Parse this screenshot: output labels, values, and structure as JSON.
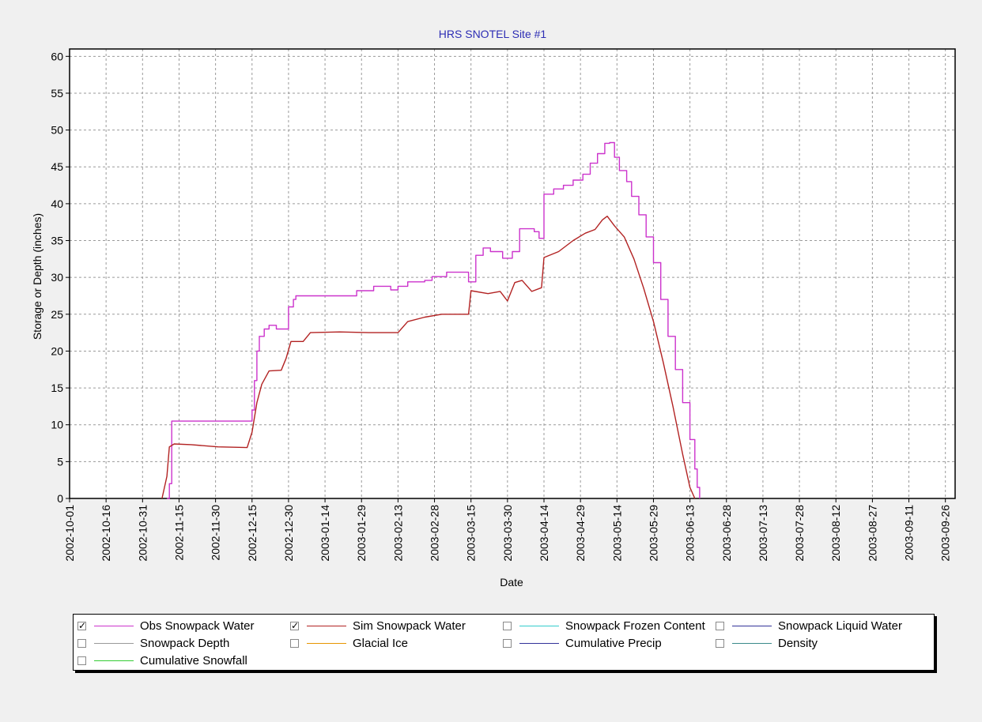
{
  "chart_data": {
    "type": "line",
    "title": "HRS SNOTEL Site #1",
    "xlabel": "Date",
    "ylabel": "Storage or Depth (inches)",
    "ylim": [
      0,
      61
    ],
    "yticks": [
      0,
      5,
      10,
      15,
      20,
      25,
      30,
      35,
      40,
      45,
      50,
      55,
      60
    ],
    "xlim": [
      "2002-10-01",
      "2003-09-30"
    ],
    "xticks": [
      "2002-10-01",
      "2002-10-16",
      "2002-10-31",
      "2002-11-15",
      "2002-11-30",
      "2002-12-15",
      "2002-12-30",
      "2003-01-14",
      "2003-01-29",
      "2003-02-13",
      "2003-02-28",
      "2003-03-15",
      "2003-03-30",
      "2003-04-14",
      "2003-04-29",
      "2003-05-14",
      "2003-05-29",
      "2003-06-13",
      "2003-06-28",
      "2003-07-13",
      "2003-07-28",
      "2003-08-12",
      "2003-08-27",
      "2003-09-11",
      "2003-09-26"
    ],
    "grid": true,
    "legend_position": "bottom",
    "series": [
      {
        "name": "Obs Snowpack Water",
        "color": "#cc33cc",
        "step": true,
        "points": [
          [
            "2002-11-10",
            0
          ],
          [
            "2002-11-11",
            2
          ],
          [
            "2002-11-12",
            10.5
          ],
          [
            "2002-12-13",
            10.5
          ],
          [
            "2002-12-15",
            12
          ],
          [
            "2002-12-16",
            16
          ],
          [
            "2002-12-17",
            20
          ],
          [
            "2002-12-18",
            22
          ],
          [
            "2002-12-20",
            23
          ],
          [
            "2002-12-22",
            23.5
          ],
          [
            "2002-12-25",
            23
          ],
          [
            "2002-12-30",
            26
          ],
          [
            "2003-01-01",
            27
          ],
          [
            "2003-01-02",
            27.5
          ],
          [
            "2003-01-25",
            27.5
          ],
          [
            "2003-01-27",
            28.2
          ],
          [
            "2003-02-03",
            28.8
          ],
          [
            "2003-02-10",
            28.3
          ],
          [
            "2003-02-13",
            28.8
          ],
          [
            "2003-02-17",
            29.4
          ],
          [
            "2003-02-24",
            29.6
          ],
          [
            "2003-02-27",
            30.1
          ],
          [
            "2003-03-05",
            30.7
          ],
          [
            "2003-03-12",
            30.7
          ],
          [
            "2003-03-14",
            29.4
          ],
          [
            "2003-03-17",
            33
          ],
          [
            "2003-03-20",
            34
          ],
          [
            "2003-03-23",
            33.5
          ],
          [
            "2003-03-28",
            32.6
          ],
          [
            "2003-04-01",
            33.5
          ],
          [
            "2003-04-04",
            36.6
          ],
          [
            "2003-04-10",
            36.2
          ],
          [
            "2003-04-12",
            35.3
          ],
          [
            "2003-04-14",
            41.3
          ],
          [
            "2003-04-18",
            42
          ],
          [
            "2003-04-22",
            42.5
          ],
          [
            "2003-04-26",
            43.2
          ],
          [
            "2003-04-30",
            44
          ],
          [
            "2003-05-03",
            45.5
          ],
          [
            "2003-05-06",
            46.8
          ],
          [
            "2003-05-09",
            48.2
          ],
          [
            "2003-05-11",
            48.3
          ],
          [
            "2003-05-13",
            46.3
          ],
          [
            "2003-05-15",
            44.5
          ],
          [
            "2003-05-18",
            43
          ],
          [
            "2003-05-20",
            41
          ],
          [
            "2003-05-23",
            38.5
          ],
          [
            "2003-05-26",
            35.5
          ],
          [
            "2003-05-29",
            32
          ],
          [
            "2003-06-01",
            27
          ],
          [
            "2003-06-04",
            22
          ],
          [
            "2003-06-07",
            17.5
          ],
          [
            "2003-06-10",
            13
          ],
          [
            "2003-06-13",
            8
          ],
          [
            "2003-06-15",
            4
          ],
          [
            "2003-06-16",
            1.5
          ],
          [
            "2003-06-17",
            0
          ]
        ]
      },
      {
        "name": "Sim Snowpack Water",
        "color": "#b22222",
        "step": false,
        "points": [
          [
            "2002-11-08",
            0
          ],
          [
            "2002-11-10",
            3
          ],
          [
            "2002-11-11",
            7
          ],
          [
            "2002-11-13",
            7.4
          ],
          [
            "2002-11-20",
            7.3
          ],
          [
            "2002-12-01",
            7.0
          ],
          [
            "2002-12-13",
            6.9
          ],
          [
            "2002-12-15",
            9
          ],
          [
            "2002-12-17",
            13
          ],
          [
            "2002-12-19",
            15.5
          ],
          [
            "2002-12-22",
            17.3
          ],
          [
            "2002-12-27",
            17.4
          ],
          [
            "2002-12-29",
            19
          ],
          [
            "2002-12-31",
            21.3
          ],
          [
            "2003-01-05",
            21.3
          ],
          [
            "2003-01-08",
            22.5
          ],
          [
            "2003-01-20",
            22.6
          ],
          [
            "2003-02-01",
            22.5
          ],
          [
            "2003-02-13",
            22.5
          ],
          [
            "2003-02-17",
            24
          ],
          [
            "2003-02-24",
            24.6
          ],
          [
            "2003-03-03",
            25.0
          ],
          [
            "2003-03-10",
            25.0
          ],
          [
            "2003-03-14",
            25.0
          ],
          [
            "2003-03-15",
            28.2
          ],
          [
            "2003-03-22",
            27.8
          ],
          [
            "2003-03-27",
            28.1
          ],
          [
            "2003-03-30",
            26.8
          ],
          [
            "2003-04-02",
            29.3
          ],
          [
            "2003-04-05",
            29.6
          ],
          [
            "2003-04-09",
            28.1
          ],
          [
            "2003-04-13",
            28.6
          ],
          [
            "2003-04-14",
            32.7
          ],
          [
            "2003-04-20",
            33.5
          ],
          [
            "2003-04-26",
            35
          ],
          [
            "2003-05-01",
            36
          ],
          [
            "2003-05-05",
            36.5
          ],
          [
            "2003-05-08",
            37.8
          ],
          [
            "2003-05-10",
            38.3
          ],
          [
            "2003-05-13",
            37
          ],
          [
            "2003-05-17",
            35.5
          ],
          [
            "2003-05-21",
            32.5
          ],
          [
            "2003-05-25",
            28.5
          ],
          [
            "2003-05-29",
            24
          ],
          [
            "2003-06-02",
            18.5
          ],
          [
            "2003-06-06",
            12.5
          ],
          [
            "2003-06-10",
            6
          ],
          [
            "2003-06-13",
            1.5
          ],
          [
            "2003-06-15",
            0
          ]
        ]
      }
    ]
  },
  "legend": {
    "items": [
      {
        "label": "Obs Snowpack Water",
        "checked": true,
        "color": "#cc33cc"
      },
      {
        "label": "Sim Snowpack Water",
        "checked": true,
        "color": "#b22222"
      },
      {
        "label": "Snowpack Frozen Content",
        "checked": false,
        "color": "#33cccc"
      },
      {
        "label": "Snowpack Liquid Water",
        "checked": false,
        "color": "#333399"
      },
      {
        "label": "Snowpack Depth",
        "checked": false,
        "color": "#999999"
      },
      {
        "label": "Glacial Ice",
        "checked": false,
        "color": "#e69500"
      },
      {
        "label": "Cumulative Precip",
        "checked": false,
        "color": "#333399"
      },
      {
        "label": "Density",
        "checked": false,
        "color": "#3a8a8a"
      },
      {
        "label": "Cumulative Snowfall",
        "checked": false,
        "color": "#33cc33"
      }
    ]
  }
}
